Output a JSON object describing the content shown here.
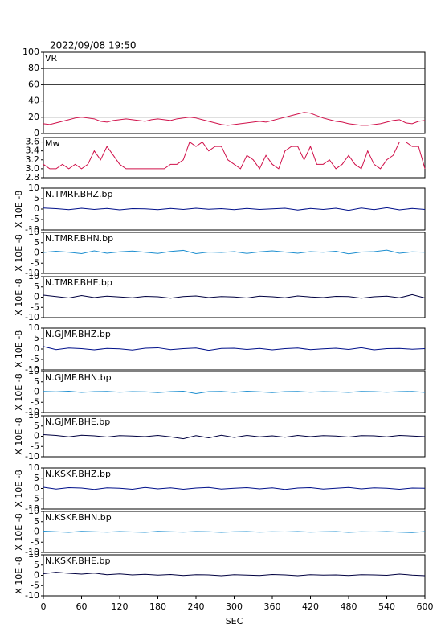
{
  "chart_data": [
    {
      "type": "line",
      "title": "2022/09/08 19:50",
      "label": "VR",
      "color": "#d0104a",
      "grid": true,
      "xlim": [
        0,
        600
      ],
      "ylim": [
        0,
        100
      ],
      "yticks": [
        0,
        20,
        40,
        60,
        80,
        100
      ],
      "x": [
        0,
        10,
        20,
        30,
        40,
        50,
        60,
        70,
        80,
        90,
        100,
        110,
        120,
        130,
        140,
        150,
        160,
        170,
        180,
        190,
        200,
        210,
        220,
        230,
        240,
        250,
        260,
        270,
        280,
        290,
        300,
        310,
        320,
        330,
        340,
        350,
        360,
        370,
        380,
        390,
        400,
        410,
        420,
        430,
        440,
        450,
        460,
        470,
        480,
        490,
        500,
        510,
        520,
        530,
        540,
        550,
        560,
        570,
        580,
        590,
        600
      ],
      "values": [
        12,
        11,
        13,
        15,
        17,
        19,
        20,
        19,
        18,
        15,
        14,
        16,
        17,
        18,
        17,
        16,
        15,
        17,
        18,
        17,
        16,
        18,
        19,
        20,
        19,
        17,
        15,
        13,
        11,
        10,
        11,
        12,
        13,
        14,
        15,
        14,
        16,
        18,
        20,
        22,
        24,
        26,
        25,
        22,
        19,
        17,
        15,
        14,
        12,
        11,
        10,
        10,
        11,
        12,
        14,
        16,
        17,
        13,
        12,
        15,
        16
      ]
    },
    {
      "type": "line",
      "label": "Mw",
      "color": "#d0104a",
      "xlim": [
        0,
        600
      ],
      "ylim": [
        2.8,
        3.7
      ],
      "yticks": [
        2.8,
        {
          "value": 3,
          "label": "3.0"
        },
        3.2,
        3.4,
        3.6
      ],
      "x": [
        0,
        10,
        20,
        30,
        40,
        50,
        60,
        70,
        80,
        90,
        100,
        110,
        120,
        130,
        140,
        150,
        160,
        170,
        180,
        190,
        200,
        210,
        220,
        230,
        240,
        250,
        260,
        270,
        280,
        290,
        300,
        310,
        320,
        330,
        340,
        350,
        360,
        370,
        380,
        390,
        400,
        410,
        420,
        430,
        440,
        450,
        460,
        470,
        480,
        490,
        500,
        510,
        520,
        530,
        540,
        550,
        560,
        570,
        580,
        590,
        600
      ],
      "values": [
        3.1,
        3.0,
        3.0,
        3.1,
        3.0,
        3.1,
        3.0,
        3.1,
        3.4,
        3.2,
        3.5,
        3.3,
        3.1,
        3.0,
        3.0,
        3.0,
        3.0,
        3.0,
        3.0,
        3.0,
        3.1,
        3.1,
        3.2,
        3.6,
        3.5,
        3.6,
        3.4,
        3.5,
        3.5,
        3.2,
        3.1,
        3.0,
        3.3,
        3.2,
        3.0,
        3.3,
        3.1,
        3.0,
        3.4,
        3.5,
        3.5,
        3.2,
        3.5,
        3.1,
        3.1,
        3.2,
        3.0,
        3.1,
        3.3,
        3.1,
        3.0,
        3.4,
        3.1,
        3.0,
        3.2,
        3.3,
        3.6,
        3.6,
        3.5,
        3.5,
        3.0
      ]
    },
    {
      "type": "line",
      "label": "N.TMRF.BHZ.bp",
      "ylabel": "X 10E -8",
      "color": "#00108a",
      "xlim": [
        0,
        600
      ],
      "ylim": [
        -10,
        10
      ],
      "yticks": [
        -10,
        -5,
        0,
        5,
        10
      ],
      "x": [
        0,
        20,
        40,
        60,
        80,
        100,
        120,
        140,
        160,
        180,
        200,
        220,
        240,
        260,
        280,
        300,
        320,
        340,
        360,
        380,
        400,
        420,
        440,
        460,
        480,
        500,
        520,
        540,
        560,
        580,
        600
      ],
      "values": [
        0.5,
        0.2,
        -0.3,
        0.4,
        -0.2,
        0.3,
        -0.4,
        0.2,
        0.1,
        -0.3,
        0.3,
        -0.2,
        0.4,
        -0.1,
        0.2,
        -0.3,
        0.3,
        -0.2,
        0.1,
        0.4,
        -0.5,
        0.3,
        -0.2,
        0.4,
        -0.6,
        0.5,
        -0.3,
        0.6,
        -0.4,
        0.3,
        -0.2
      ]
    },
    {
      "type": "line",
      "label": "N.TMRF.BHN.bp",
      "ylabel": "X 10E -8",
      "color": "#1e8fd0",
      "xlim": [
        0,
        600
      ],
      "ylim": [
        -10,
        10
      ],
      "yticks": [
        -10,
        -5,
        0,
        5,
        10
      ],
      "x": [
        0,
        20,
        40,
        60,
        80,
        100,
        120,
        140,
        160,
        180,
        200,
        220,
        240,
        260,
        280,
        300,
        320,
        340,
        360,
        380,
        400,
        420,
        440,
        460,
        480,
        500,
        520,
        540,
        560,
        580,
        600
      ],
      "values": [
        0.2,
        0.8,
        0.3,
        -0.4,
        1.0,
        -0.2,
        0.5,
        0.9,
        0.3,
        -0.3,
        0.7,
        1.2,
        -0.4,
        0.4,
        0.2,
        0.6,
        -0.3,
        0.5,
        1.0,
        0.4,
        -0.2,
        0.6,
        0.3,
        0.8,
        -0.5,
        0.4,
        0.6,
        1.3,
        -0.2,
        0.5,
        0.3
      ]
    },
    {
      "type": "line",
      "label": "N.TMRF.BHE.bp",
      "ylabel": "X 10E -8",
      "color": "#000040",
      "xlim": [
        0,
        600
      ],
      "ylim": [
        -10,
        10
      ],
      "yticks": [
        -10,
        -5,
        0,
        5,
        10
      ],
      "x": [
        0,
        20,
        40,
        60,
        80,
        100,
        120,
        140,
        160,
        180,
        200,
        220,
        240,
        260,
        280,
        300,
        320,
        340,
        360,
        380,
        400,
        420,
        440,
        460,
        480,
        500,
        520,
        540,
        560,
        580,
        600
      ],
      "values": [
        1.0,
        0.3,
        -0.4,
        0.8,
        -0.2,
        0.5,
        0.1,
        -0.3,
        0.4,
        0.2,
        -0.5,
        0.3,
        0.6,
        -0.2,
        0.3,
        0.1,
        -0.4,
        0.5,
        0.2,
        -0.3,
        0.6,
        0.1,
        -0.2,
        0.4,
        0.3,
        -0.5,
        0.2,
        0.5,
        -0.3,
        1.2,
        -0.4
      ]
    },
    {
      "type": "line",
      "label": "N.GJMF.BHZ.bp",
      "ylabel": "X 10E -8",
      "color": "#00108a",
      "xlim": [
        0,
        600
      ],
      "ylim": [
        -10,
        10
      ],
      "yticks": [
        -10,
        -5,
        0,
        5,
        10
      ],
      "x": [
        0,
        20,
        40,
        60,
        80,
        100,
        120,
        140,
        160,
        180,
        200,
        220,
        240,
        260,
        280,
        300,
        320,
        340,
        360,
        380,
        400,
        420,
        440,
        460,
        480,
        500,
        520,
        540,
        560,
        580,
        600
      ],
      "values": [
        1.2,
        -0.3,
        0.5,
        0.2,
        -0.4,
        0.3,
        0.1,
        -0.5,
        0.4,
        0.6,
        -0.3,
        0.2,
        0.5,
        -0.6,
        0.3,
        0.4,
        -0.2,
        0.3,
        -0.4,
        0.2,
        0.5,
        -0.3,
        0.1,
        0.4,
        -0.2,
        0.6,
        -0.4,
        0.2,
        0.3,
        -0.1,
        0.2
      ]
    },
    {
      "type": "line",
      "label": "N.GJMF.BHN.bp",
      "ylabel": "X 10E -8",
      "color": "#1e8fd0",
      "xlim": [
        0,
        600
      ],
      "ylim": [
        -10,
        10
      ],
      "yticks": [
        -10,
        -5,
        0,
        5,
        10
      ],
      "x": [
        0,
        20,
        40,
        60,
        80,
        100,
        120,
        140,
        160,
        180,
        200,
        220,
        240,
        260,
        280,
        300,
        320,
        340,
        360,
        380,
        400,
        420,
        440,
        460,
        480,
        500,
        520,
        540,
        560,
        580,
        600
      ],
      "values": [
        0.3,
        0.1,
        0.4,
        -0.2,
        0.2,
        0.3,
        -0.1,
        0.2,
        0.1,
        -0.3,
        0.2,
        0.4,
        -0.8,
        0.2,
        0.3,
        -0.2,
        0.4,
        0.1,
        -0.3,
        0.2,
        0.3,
        -0.1,
        0.2,
        0.1,
        -0.2,
        0.3,
        0.2,
        -0.1,
        0.2,
        0.3,
        -0.2
      ]
    },
    {
      "type": "line",
      "label": "N.GJMF.BHE.bp",
      "ylabel": "X 10E -8",
      "color": "#000040",
      "xlim": [
        0,
        600
      ],
      "ylim": [
        -10,
        10
      ],
      "yticks": [
        -10,
        -5,
        0,
        5,
        10
      ],
      "x": [
        0,
        20,
        40,
        60,
        80,
        100,
        120,
        140,
        160,
        180,
        200,
        220,
        240,
        260,
        280,
        300,
        320,
        340,
        360,
        380,
        400,
        420,
        440,
        460,
        480,
        500,
        520,
        540,
        560,
        580,
        600
      ],
      "values": [
        0.8,
        0.4,
        -0.3,
        0.5,
        0.2,
        -0.4,
        0.3,
        0.1,
        -0.2,
        0.4,
        -0.3,
        -1.2,
        0.3,
        -0.8,
        0.5,
        -0.6,
        0.4,
        -0.3,
        0.2,
        -0.5,
        0.4,
        -0.2,
        0.3,
        0.1,
        -0.4,
        0.3,
        0.2,
        -0.3,
        0.4,
        0.1,
        -0.2
      ]
    },
    {
      "type": "line",
      "label": "N.KSKF.BHZ.bp",
      "ylabel": "X 10E -8",
      "color": "#00108a",
      "xlim": [
        0,
        600
      ],
      "ylim": [
        -10,
        10
      ],
      "yticks": [
        -10,
        -5,
        0,
        5,
        10
      ],
      "x": [
        0,
        20,
        40,
        60,
        80,
        100,
        120,
        140,
        160,
        180,
        200,
        220,
        240,
        260,
        280,
        300,
        320,
        340,
        360,
        380,
        400,
        420,
        440,
        460,
        480,
        500,
        520,
        540,
        560,
        580,
        600
      ],
      "values": [
        0.6,
        -0.3,
        0.4,
        0.2,
        -0.5,
        0.3,
        0.1,
        -0.4,
        0.5,
        -0.2,
        0.3,
        -0.4,
        0.2,
        0.5,
        -0.3,
        0.1,
        0.4,
        -0.2,
        0.3,
        -0.5,
        0.2,
        0.4,
        -0.3,
        0.1,
        0.5,
        -0.2,
        0.3,
        0.1,
        -0.4,
        0.2,
        0.1
      ]
    },
    {
      "type": "line",
      "label": "N.KSKF.BHN.bp",
      "ylabel": "X 10E -8",
      "color": "#1e8fd0",
      "xlim": [
        0,
        600
      ],
      "ylim": [
        -10,
        10
      ],
      "yticks": [
        -10,
        -5,
        0,
        5,
        10
      ],
      "x": [
        0,
        20,
        40,
        60,
        80,
        100,
        120,
        140,
        160,
        180,
        200,
        220,
        240,
        260,
        280,
        300,
        320,
        340,
        360,
        380,
        400,
        420,
        440,
        460,
        480,
        500,
        520,
        540,
        560,
        580,
        600
      ],
      "values": [
        0.4,
        0.1,
        -0.2,
        0.3,
        0.1,
        -0.1,
        0.2,
        0.0,
        -0.2,
        0.3,
        0.1,
        -0.1,
        0.2,
        0.1,
        -0.2,
        0.1,
        0.2,
        -0.1,
        0.1,
        0.0,
        0.2,
        -0.1,
        0.1,
        0.2,
        -0.2,
        0.1,
        0.0,
        0.2,
        -0.1,
        -0.3,
        0.2
      ]
    },
    {
      "type": "line",
      "label": "N.KSKF.BHE.bp",
      "ylabel": "X 10E -8",
      "color": "#000040",
      "xlim": [
        0,
        600
      ],
      "ylim": [
        -10,
        10
      ],
      "yticks": [
        -10,
        -5,
        0,
        5,
        10
      ],
      "xlabel": "SEC",
      "xticks": [
        0,
        60,
        120,
        180,
        240,
        300,
        360,
        420,
        480,
        540,
        600
      ],
      "x": [
        0,
        20,
        40,
        60,
        80,
        100,
        120,
        140,
        160,
        180,
        200,
        220,
        240,
        260,
        280,
        300,
        320,
        340,
        360,
        380,
        400,
        420,
        440,
        460,
        480,
        500,
        520,
        540,
        560,
        580,
        600
      ],
      "values": [
        0.8,
        1.5,
        1.0,
        0.6,
        1.1,
        0.3,
        0.7,
        0.2,
        0.5,
        0.1,
        0.4,
        -0.1,
        0.3,
        0.2,
        -0.2,
        0.3,
        0.1,
        -0.1,
        0.4,
        0.2,
        -0.2,
        0.3,
        0.1,
        0.2,
        -0.1,
        0.3,
        0.2,
        0.0,
        0.6,
        0.1,
        -0.2
      ]
    }
  ]
}
